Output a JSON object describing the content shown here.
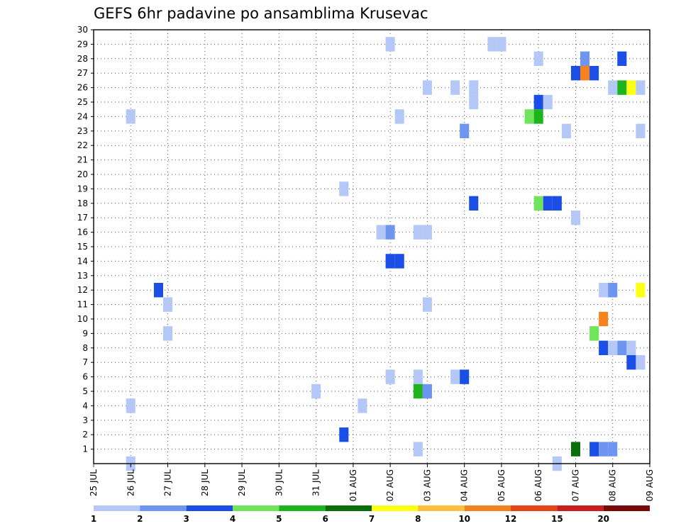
{
  "chart_data": {
    "type": "heatmap",
    "title": "GEFS 6hr padavine po ansamblima Krusevac",
    "xlabel": "",
    "ylabel": "",
    "x_range_days": [
      0,
      15
    ],
    "ylim": [
      0,
      30
    ],
    "y_ticks": [
      1,
      2,
      3,
      4,
      5,
      6,
      7,
      8,
      9,
      10,
      11,
      12,
      13,
      14,
      15,
      16,
      17,
      18,
      19,
      20,
      21,
      22,
      23,
      24,
      25,
      26,
      27,
      28,
      29,
      30
    ],
    "x_tick_labels": [
      "25 JUL",
      "26 JUL",
      "27 JUL",
      "28 JUL",
      "29 JUL",
      "30 JUL",
      "31 JUL",
      "01 AUG",
      "02 AUG",
      "03 AUG",
      "04 AUG",
      "05 AUG",
      "06 AUG",
      "07 AUG",
      "08 AUG",
      "09 AUG"
    ],
    "grid": "dotted",
    "colorbar": {
      "labels": [
        "1",
        "2",
        "3",
        "4",
        "5",
        "6",
        "7",
        "8",
        "10",
        "12",
        "15",
        "20"
      ],
      "colors": [
        "#b4c8f8",
        "#6e96f0",
        "#1a4ee6",
        "#70e45a",
        "#1eb41e",
        "#0a6e0a",
        "#ffff14",
        "#ffbe3c",
        "#f5821e",
        "#e64614",
        "#c81e1e",
        "#780a0a"
      ]
    },
    "cells": [
      {
        "d": 1.0,
        "m": 0,
        "c": 0
      },
      {
        "d": 1.0,
        "m": 4,
        "c": 0
      },
      {
        "d": 1.0,
        "m": 24,
        "c": 0
      },
      {
        "d": 1.75,
        "m": 12,
        "c": 2
      },
      {
        "d": 2.0,
        "m": 11,
        "c": 0
      },
      {
        "d": 2.0,
        "m": 9,
        "c": 0
      },
      {
        "d": 6.0,
        "m": 5,
        "c": 0
      },
      {
        "d": 6.75,
        "m": 2,
        "c": 2
      },
      {
        "d": 6.75,
        "m": 19,
        "c": 0
      },
      {
        "d": 7.25,
        "m": 4,
        "c": 0
      },
      {
        "d": 7.75,
        "m": 16,
        "c": 0
      },
      {
        "d": 8.0,
        "m": 29,
        "c": 0
      },
      {
        "d": 8.0,
        "m": 16,
        "c": 1
      },
      {
        "d": 8.0,
        "m": 14,
        "c": 2
      },
      {
        "d": 8.0,
        "m": 6,
        "c": 0
      },
      {
        "d": 8.25,
        "m": 24,
        "c": 0
      },
      {
        "d": 8.25,
        "m": 14,
        "c": 2
      },
      {
        "d": 8.75,
        "m": 16,
        "c": 0
      },
      {
        "d": 8.75,
        "m": 6,
        "c": 0
      },
      {
        "d": 8.75,
        "m": 5,
        "c": 4
      },
      {
        "d": 8.75,
        "m": 1,
        "c": 0
      },
      {
        "d": 9.0,
        "m": 26,
        "c": 0
      },
      {
        "d": 9.0,
        "m": 16,
        "c": 0
      },
      {
        "d": 9.0,
        "m": 11,
        "c": 0
      },
      {
        "d": 9.0,
        "m": 5,
        "c": 1
      },
      {
        "d": 9.75,
        "m": 26,
        "c": 0
      },
      {
        "d": 9.75,
        "m": 6,
        "c": 0
      },
      {
        "d": 10.0,
        "m": 23,
        "c": 1
      },
      {
        "d": 10.0,
        "m": 6,
        "c": 2
      },
      {
        "d": 10.25,
        "m": 26,
        "c": 0
      },
      {
        "d": 10.25,
        "m": 25,
        "c": 0
      },
      {
        "d": 10.25,
        "m": 18,
        "c": 2
      },
      {
        "d": 10.75,
        "m": 29,
        "c": 0
      },
      {
        "d": 11.0,
        "m": 29,
        "c": 0
      },
      {
        "d": 11.75,
        "m": 24,
        "c": 3
      },
      {
        "d": 12.0,
        "m": 28,
        "c": 0
      },
      {
        "d": 12.0,
        "m": 25,
        "c": 2
      },
      {
        "d": 12.0,
        "m": 24,
        "c": 4
      },
      {
        "d": 12.0,
        "m": 18,
        "c": 3
      },
      {
        "d": 12.25,
        "m": 25,
        "c": 0
      },
      {
        "d": 12.25,
        "m": 18,
        "c": 2
      },
      {
        "d": 12.5,
        "m": 18,
        "c": 2
      },
      {
        "d": 12.5,
        "m": 0,
        "c": 0
      },
      {
        "d": 12.75,
        "m": 23,
        "c": 0
      },
      {
        "d": 13.0,
        "m": 27,
        "c": 2
      },
      {
        "d": 13.0,
        "m": 17,
        "c": 0
      },
      {
        "d": 13.0,
        "m": 1,
        "c": 5
      },
      {
        "d": 13.25,
        "m": 28,
        "c": 1
      },
      {
        "d": 13.25,
        "m": 27,
        "c": 8
      },
      {
        "d": 13.5,
        "m": 27,
        "c": 2
      },
      {
        "d": 13.5,
        "m": 9,
        "c": 3
      },
      {
        "d": 13.5,
        "m": 1,
        "c": 2
      },
      {
        "d": 13.75,
        "m": 12,
        "c": 0
      },
      {
        "d": 13.75,
        "m": 10,
        "c": 8
      },
      {
        "d": 13.75,
        "m": 8,
        "c": 2
      },
      {
        "d": 13.75,
        "m": 1,
        "c": 1
      },
      {
        "d": 14.0,
        "m": 26,
        "c": 0
      },
      {
        "d": 14.0,
        "m": 12,
        "c": 1
      },
      {
        "d": 14.0,
        "m": 8,
        "c": 0
      },
      {
        "d": 14.0,
        "m": 1,
        "c": 1
      },
      {
        "d": 14.25,
        "m": 28,
        "c": 2
      },
      {
        "d": 14.25,
        "m": 26,
        "c": 4
      },
      {
        "d": 14.25,
        "m": 8,
        "c": 1
      },
      {
        "d": 14.5,
        "m": 26,
        "c": 6
      },
      {
        "d": 14.5,
        "m": 8,
        "c": 0
      },
      {
        "d": 14.5,
        "m": 7,
        "c": 2
      },
      {
        "d": 14.75,
        "m": 26,
        "c": 0
      },
      {
        "d": 14.75,
        "m": 23,
        "c": 0
      },
      {
        "d": 14.75,
        "m": 12,
        "c": 6
      },
      {
        "d": 14.75,
        "m": 7,
        "c": 0
      }
    ]
  }
}
